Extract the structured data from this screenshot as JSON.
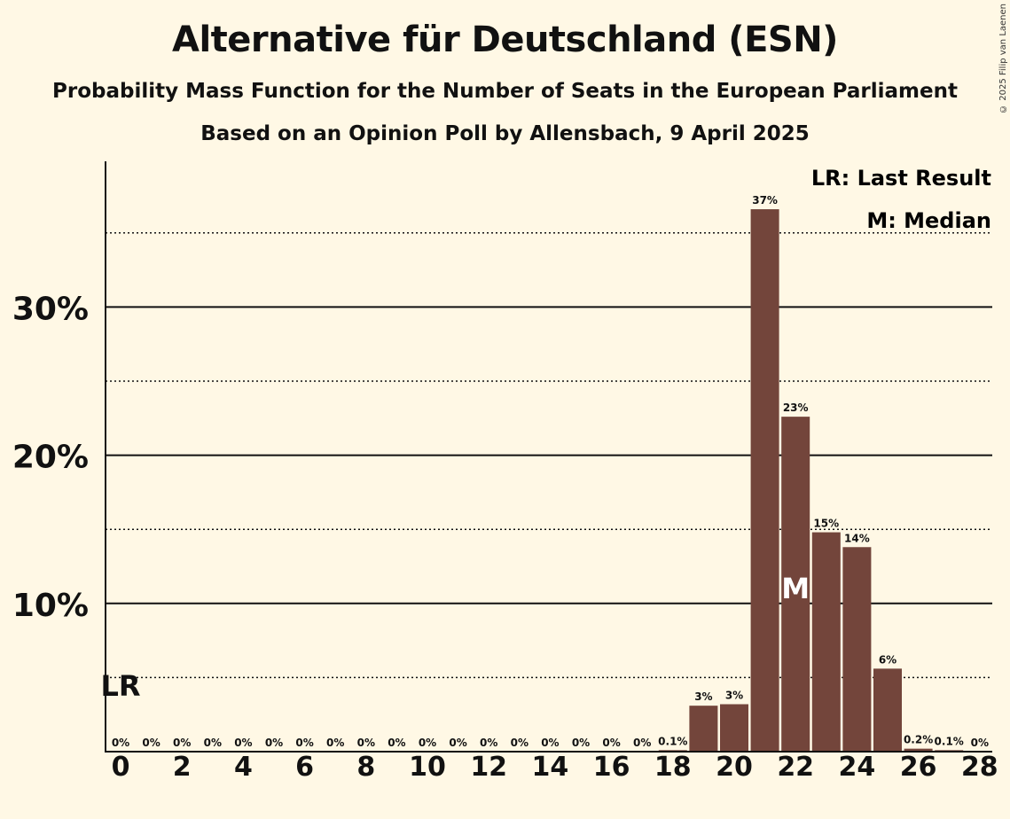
{
  "title": "Alternative für Deutschland (ESN)",
  "subtitle": "Probability Mass Function for the Number of Seats in the European Parliament",
  "source": "Based on an Opinion Poll by Allensbach, 9 April 2025",
  "copyright": "© 2025 Filip van Laenen",
  "legend": {
    "last_result": "LR: Last Result",
    "median": "M: Median"
  },
  "colors": {
    "background": "#fff8e5",
    "bar": "#73453b",
    "text": "#111111"
  },
  "chart_data": {
    "type": "bar",
    "title": "Alternative für Deutschland (ESN)",
    "xlabel": "",
    "ylabel": "",
    "ylim": [
      0,
      39
    ],
    "x_ticks": [
      0,
      2,
      4,
      6,
      8,
      10,
      12,
      14,
      16,
      18,
      20,
      22,
      24,
      26,
      28
    ],
    "y_ticks": [
      10,
      20,
      30
    ],
    "y_tick_labels": [
      "10%",
      "20%",
      "30%"
    ],
    "y_minor_gridlines": [
      5,
      15,
      25,
      35
    ],
    "categories": [
      0,
      1,
      2,
      3,
      4,
      5,
      6,
      7,
      8,
      9,
      10,
      11,
      12,
      13,
      14,
      15,
      16,
      17,
      18,
      19,
      20,
      21,
      22,
      23,
      24,
      25,
      26,
      27,
      28
    ],
    "values": [
      0,
      0,
      0,
      0,
      0,
      0,
      0,
      0,
      0,
      0,
      0,
      0,
      0,
      0,
      0,
      0,
      0,
      0,
      0.1,
      3.1,
      3.2,
      36.6,
      22.6,
      14.8,
      13.8,
      5.6,
      0.2,
      0.1,
      0
    ],
    "data_labels": [
      "0%",
      "0%",
      "0%",
      "0%",
      "0%",
      "0%",
      "0%",
      "0%",
      "0%",
      "0%",
      "0%",
      "0%",
      "0%",
      "0%",
      "0%",
      "0%",
      "0%",
      "0%",
      "0.1%",
      "3%",
      "3%",
      "37%",
      "23%",
      "15%",
      "14%",
      "6%",
      "0.2%",
      "0.1%",
      "0%"
    ],
    "last_result_seat": 0,
    "last_result_marker": "LR",
    "median_seat": 22,
    "median_marker": "M"
  }
}
